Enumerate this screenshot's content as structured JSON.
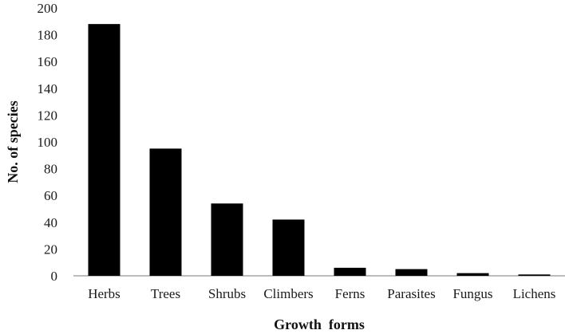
{
  "chart_data": {
    "type": "bar",
    "categories": [
      "Herbs",
      "Trees",
      "Shrubs",
      "Climbers",
      "Ferns",
      "Parasites",
      "Fungus",
      "Lichens"
    ],
    "values": [
      188,
      95,
      54,
      42,
      6,
      5,
      2,
      1
    ],
    "xlabel": "Growth  forms",
    "ylabel": "No. of species",
    "ylim": [
      0,
      200
    ],
    "yticks": [
      0,
      20,
      40,
      60,
      80,
      100,
      120,
      140,
      160,
      180,
      200
    ],
    "grid": false,
    "legend": "none",
    "bar_color": "#000000",
    "axis_color": "#a6a6a6"
  }
}
